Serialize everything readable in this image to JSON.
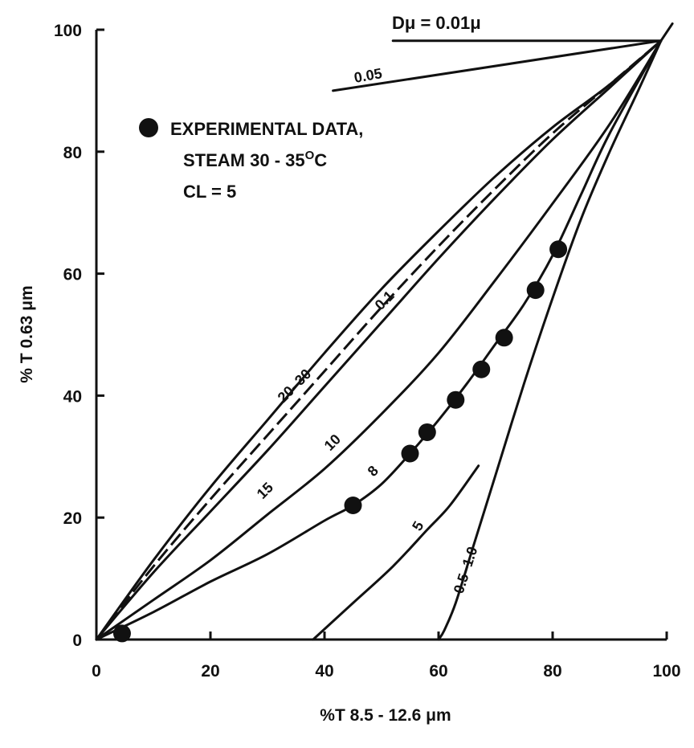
{
  "chart_data": {
    "type": "line",
    "xlabel": "%T  8.5  -  12.6 μm",
    "ylabel": "% T  0.63 μm",
    "xlim": [
      0,
      100
    ],
    "ylim": [
      0,
      100
    ],
    "x_ticks": [
      "0",
      "20",
      "40",
      "60",
      "80",
      "100"
    ],
    "y_ticks": [
      "0",
      "20",
      "40",
      "60",
      "80",
      "100"
    ],
    "header_label": "Dμ  =  0.01μ",
    "legend": {
      "marker_label": "EXPERIMENTAL DATA,",
      "line2": "STEAM 30 - 35",
      "line2_sup": "O",
      "line2_end": "C",
      "line3": "CL  =  5"
    },
    "series": [
      {
        "name": "0.01",
        "label": "",
        "points": [
          [
            52,
            98.2
          ],
          [
            99,
            98.2
          ]
        ]
      },
      {
        "name": "0.05",
        "label": "0.05",
        "points": [
          [
            41.5,
            90
          ],
          [
            99,
            98.2
          ]
        ]
      },
      {
        "name": "20-30",
        "label": "20–30",
        "points": [
          [
            0,
            0
          ],
          [
            10,
            13
          ],
          [
            20,
            25
          ],
          [
            30,
            36
          ],
          [
            40,
            47
          ],
          [
            50,
            57.5
          ],
          [
            60,
            67
          ],
          [
            70,
            76
          ],
          [
            80,
            84
          ],
          [
            90,
            91
          ],
          [
            99,
            98.2
          ]
        ]
      },
      {
        "name": "15",
        "label": "15",
        "points": [
          [
            0,
            0
          ],
          [
            10,
            11
          ],
          [
            20,
            21
          ],
          [
            30,
            31
          ],
          [
            40,
            41.5
          ],
          [
            50,
            52
          ],
          [
            60,
            62.5
          ],
          [
            70,
            72.5
          ],
          [
            80,
            82
          ],
          [
            90,
            90.5
          ],
          [
            99,
            98.2
          ]
        ]
      },
      {
        "name": "0.1",
        "label": "0.1",
        "points": [
          [
            0,
            0
          ],
          [
            10,
            12
          ],
          [
            20,
            23
          ],
          [
            30,
            33.5
          ],
          [
            40,
            44
          ],
          [
            50,
            54.5
          ],
          [
            60,
            64.5
          ],
          [
            70,
            74
          ],
          [
            80,
            83
          ],
          [
            90,
            91
          ],
          [
            99,
            98.2
          ]
        ]
      },
      {
        "name": "10",
        "label": "10",
        "points": [
          [
            0,
            0
          ],
          [
            10,
            6.5
          ],
          [
            20,
            13
          ],
          [
            30,
            20.5
          ],
          [
            40,
            28
          ],
          [
            50,
            37
          ],
          [
            60,
            47
          ],
          [
            70,
            59
          ],
          [
            80,
            71.5
          ],
          [
            90,
            84.5
          ],
          [
            99,
            98.2
          ]
        ]
      },
      {
        "name": "8",
        "label": "8",
        "points": [
          [
            0,
            0
          ],
          [
            10,
            4.5
          ],
          [
            20,
            9.5
          ],
          [
            30,
            14
          ],
          [
            40,
            19.5
          ],
          [
            45,
            22
          ],
          [
            50,
            25.5
          ],
          [
            55,
            30.5
          ],
          [
            60,
            36
          ],
          [
            65,
            42
          ],
          [
            70,
            48.5
          ],
          [
            75,
            55
          ],
          [
            80,
            63
          ],
          [
            85,
            73
          ],
          [
            90,
            83
          ],
          [
            99,
            98.2
          ]
        ]
      },
      {
        "name": "5",
        "label": "5",
        "points": [
          [
            38,
            0
          ],
          [
            45,
            6
          ],
          [
            52,
            12
          ],
          [
            58,
            18
          ],
          [
            62,
            22
          ],
          [
            67,
            28.5
          ]
        ]
      },
      {
        "name": "0.5-1.0",
        "label": "0.5–1.0",
        "points": [
          [
            60,
            0
          ],
          [
            61,
            1.5
          ],
          [
            63,
            6
          ],
          [
            66,
            15
          ],
          [
            70,
            27
          ],
          [
            75,
            42
          ],
          [
            80,
            56
          ],
          [
            85,
            69
          ],
          [
            90,
            80
          ],
          [
            95,
            90
          ],
          [
            99,
            98.2
          ]
        ]
      },
      {
        "name": "extension",
        "label": "",
        "points": [
          [
            99,
            98.2
          ],
          [
            101,
            101
          ]
        ]
      }
    ],
    "experimental_points": [
      [
        4.5,
        1
      ],
      [
        45,
        22
      ],
      [
        55,
        30.5
      ],
      [
        58,
        34
      ],
      [
        63,
        39.3
      ],
      [
        67.5,
        44.3
      ],
      [
        71.5,
        49.5
      ],
      [
        77,
        57.3
      ],
      [
        81,
        64
      ]
    ]
  }
}
